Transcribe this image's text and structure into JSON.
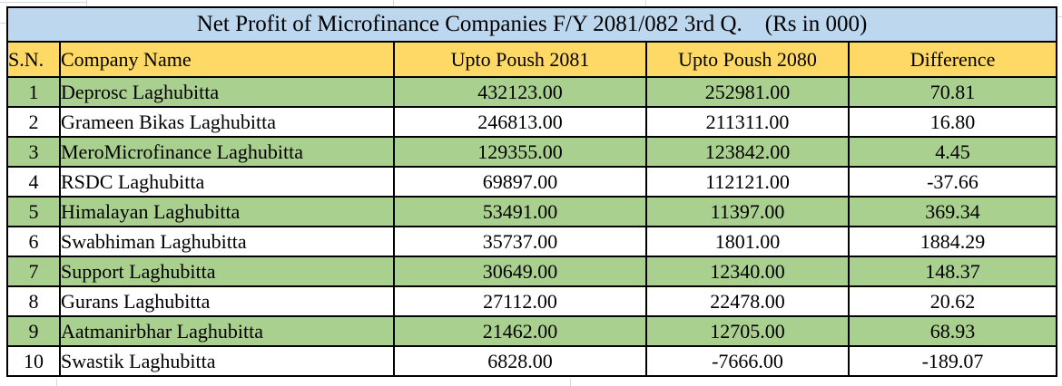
{
  "chart_data": {
    "type": "table",
    "title": "Net Profit of Microfinance Companies F/Y 2081/082 3rd Q.    (Rs in 000)",
    "units_note": "Rs in 000",
    "columns": [
      "S.N.",
      "Company Name",
      "Upto Poush 2081",
      "Upto Poush 2080",
      "Difference"
    ],
    "rows": [
      [
        "1",
        "Deprosc Laghubitta",
        "432123.00",
        "252981.00",
        "70.81"
      ],
      [
        "2",
        "Grameen Bikas Laghubitta",
        "246813.00",
        "211311.00",
        "16.80"
      ],
      [
        "3",
        "MeroMicrofinance Laghubitta",
        "129355.00",
        "123842.00",
        "4.45"
      ],
      [
        "4",
        "RSDC Laghubitta",
        "69897.00",
        "112121.00",
        "-37.66"
      ],
      [
        "5",
        "Himalayan Laghubitta",
        "53491.00",
        "11397.00",
        "369.34"
      ],
      [
        "6",
        "Swabhiman Laghubitta",
        "35737.00",
        "1801.00",
        "1884.29"
      ],
      [
        "7",
        "Support Laghubitta",
        "30649.00",
        "12340.00",
        "148.37"
      ],
      [
        "8",
        "Gurans Laghubitta",
        "27112.00",
        "22478.00",
        "20.62"
      ],
      [
        "9",
        "Aatmanirbhar Laghubitta",
        "21462.00",
        "12705.00",
        "68.93"
      ],
      [
        "10",
        "Swastik Laghubitta",
        "6828.00",
        "-7666.00",
        "-189.07"
      ]
    ],
    "layout": {
      "row_striping": "odd S.N. rows green, even S.N. rows white",
      "number_alignment": "center",
      "company_alignment": "left"
    },
    "colors": {
      "title_bg": "#BDD7EE",
      "header_bg": "#FFD966",
      "row_green": "#A9D08E",
      "row_white": "#FFFFFF",
      "border": "#000000",
      "text": "#000000",
      "margin_gridline": "#d4d9e0"
    }
  }
}
